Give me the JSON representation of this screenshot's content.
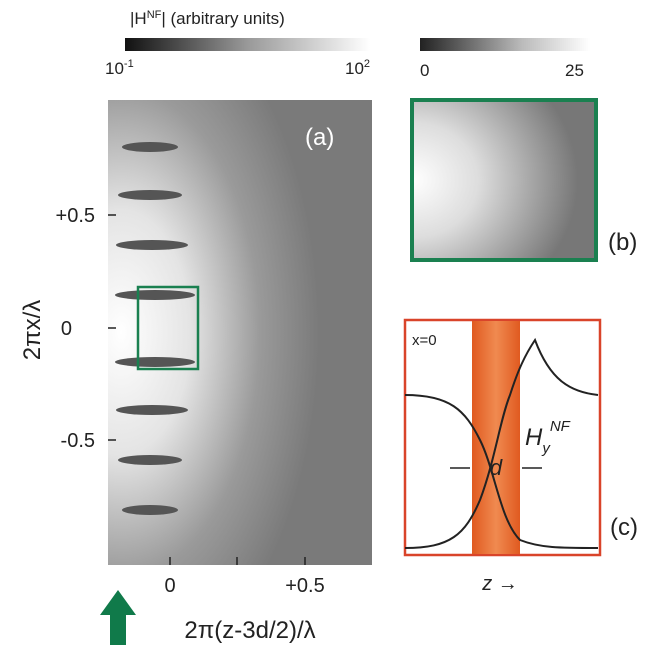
{
  "panel_a": {
    "label": "(a)",
    "colorbar": {
      "title_prefix": "|H",
      "title_sup": "NF",
      "title_suffix": "| (arbitrary units)",
      "min_base": "10",
      "min_exp": "-1",
      "max_base": "10",
      "max_exp": "2"
    },
    "yaxis_label": "2πx/λ",
    "xaxis_label": "2π(z-3d/2)/λ",
    "yticks": [
      "+0.5",
      "0",
      "-0.5"
    ],
    "xticks": [
      "0",
      "+0.5"
    ]
  },
  "panel_b": {
    "label": "(b)",
    "colorbar": {
      "min": "0",
      "max": "25"
    }
  },
  "panel_c": {
    "label": "(c)",
    "position": "x=0",
    "field_base": "H",
    "field_sub": "y",
    "field_sup": "NF",
    "width": "d",
    "axis": "z →"
  }
}
